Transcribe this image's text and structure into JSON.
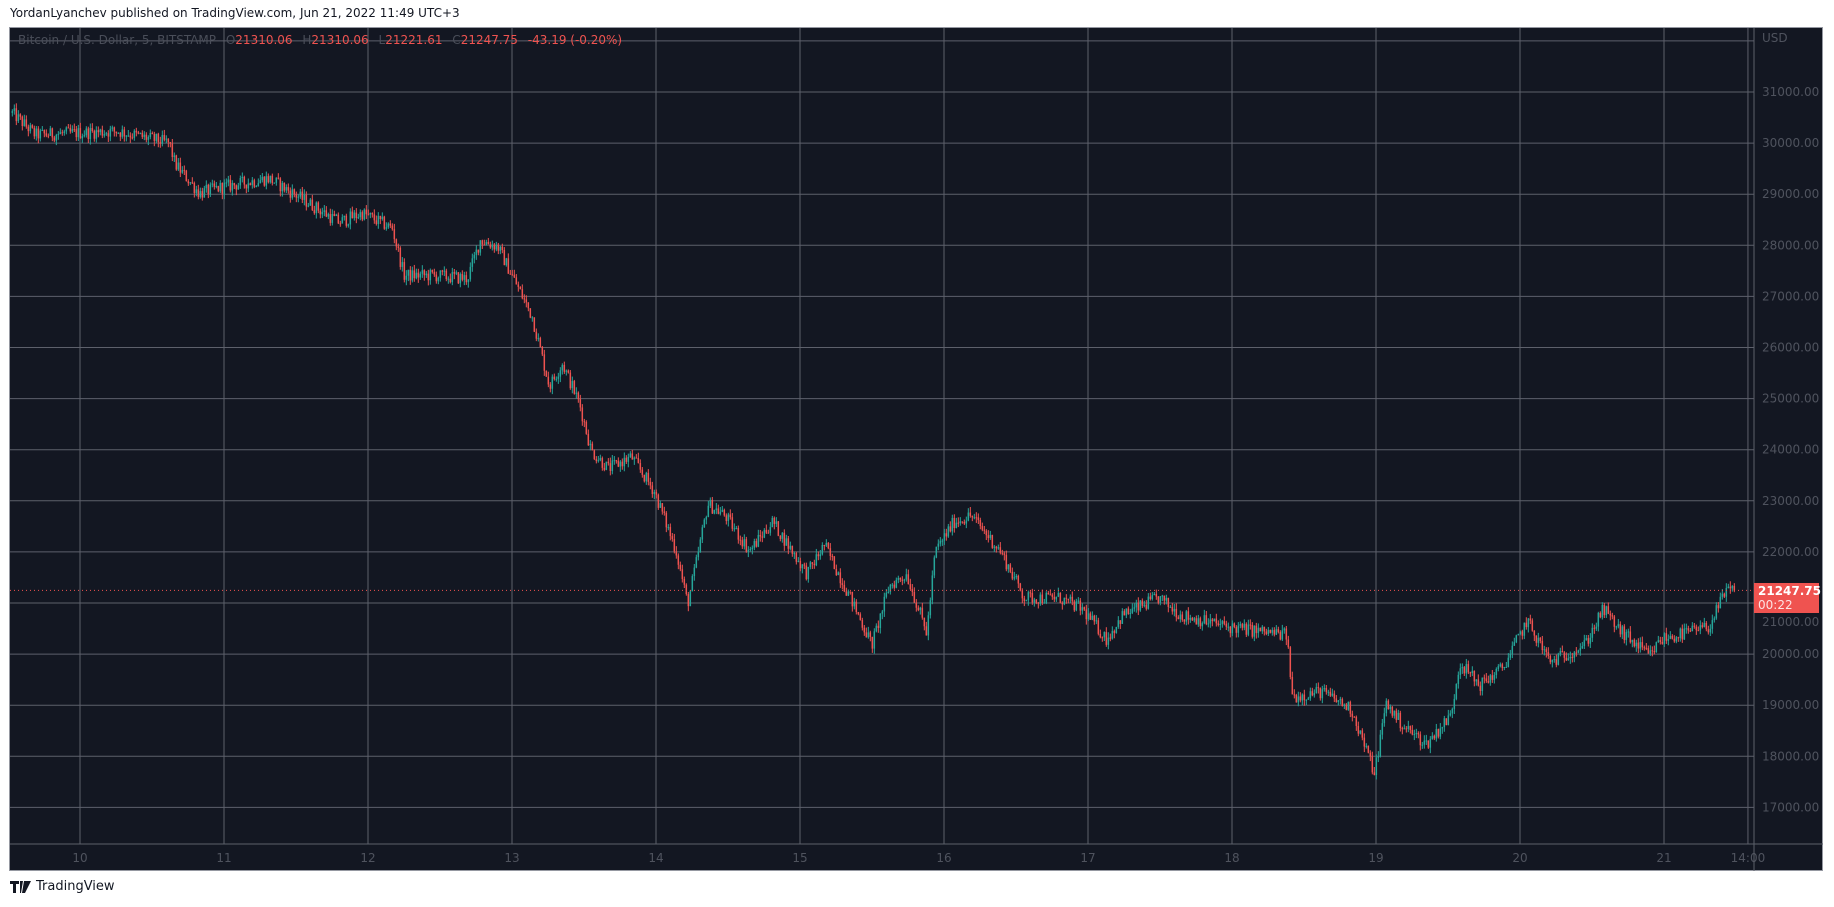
{
  "header": {
    "published": "YordanLyanchev published on TradingView.com, Jun 21, 2022 11:49 UTC+3"
  },
  "legend": {
    "symbol": "Bitcoin / U.S. Dollar, 5, BITSTAMP",
    "o_label": "O",
    "o": "21310.06",
    "h_label": "H",
    "h": "21310.06",
    "l_label": "L",
    "l": "21221.61",
    "c_label": "C",
    "c": "21247.75",
    "change": "-43.19 (-0.20%)"
  },
  "current_price": {
    "value": "21247.75",
    "countdown": "00:22"
  },
  "footer": {
    "brand": "TradingView"
  },
  "colors": {
    "background": "#131722",
    "up": "#26a69a",
    "down": "#ef5350",
    "grid": "#5d606b"
  },
  "chart_data": {
    "type": "candlestick",
    "currency_label": "USD",
    "interval": "5",
    "ylim": [
      16300,
      32300
    ],
    "y_ticks": [
      31000,
      30000,
      29000,
      28000,
      27000,
      26000,
      25000,
      24000,
      23000,
      22000,
      21000,
      20000,
      19000,
      18000,
      17000
    ],
    "y_tick_labels": [
      "31000.00",
      "30000.00",
      "29000.00",
      "28000.00",
      "27000.00",
      "26000.00",
      "25000.00",
      "24000.00",
      "23000.00",
      "22000.00",
      "21000.00",
      "20000.00",
      "19000.00",
      "18000.00",
      "17000.00"
    ],
    "x_ticks": [
      10,
      11,
      12,
      13,
      14,
      15,
      16,
      17,
      18,
      19,
      20,
      21,
      21.583
    ],
    "x_tick_labels": [
      "10",
      "11",
      "12",
      "13",
      "14",
      "15",
      "16",
      "17",
      "18",
      "19",
      "20",
      "21",
      "14:00"
    ],
    "grid": true,
    "price_path": [
      [
        9.53,
        30590
      ],
      [
        9.69,
        30160
      ],
      [
        10.26,
        30235
      ],
      [
        10.62,
        30000
      ],
      [
        10.66,
        29590
      ],
      [
        10.83,
        29020
      ],
      [
        10.99,
        29140
      ],
      [
        11.31,
        29310
      ],
      [
        11.48,
        29020
      ],
      [
        11.8,
        28450
      ],
      [
        11.96,
        28630
      ],
      [
        12.17,
        28330
      ],
      [
        12.25,
        27410
      ],
      [
        12.45,
        27410
      ],
      [
        12.69,
        27350
      ],
      [
        12.78,
        28100
      ],
      [
        12.9,
        27980
      ],
      [
        13.02,
        27300
      ],
      [
        13.14,
        26610
      ],
      [
        13.26,
        25240
      ],
      [
        13.35,
        25690
      ],
      [
        13.47,
        24890
      ],
      [
        13.55,
        23980
      ],
      [
        13.67,
        23630
      ],
      [
        13.83,
        23860
      ],
      [
        13.99,
        23180
      ],
      [
        14.14,
        22020
      ],
      [
        14.22,
        20980
      ],
      [
        14.28,
        21790
      ],
      [
        14.36,
        22940
      ],
      [
        14.48,
        22710
      ],
      [
        14.65,
        22020
      ],
      [
        14.81,
        22590
      ],
      [
        15.05,
        21570
      ],
      [
        15.17,
        22140
      ],
      [
        15.33,
        21220
      ],
      [
        15.5,
        20180
      ],
      [
        15.62,
        21330
      ],
      [
        15.74,
        21570
      ],
      [
        15.88,
        20410
      ],
      [
        15.94,
        22020
      ],
      [
        16.07,
        22590
      ],
      [
        16.19,
        22710
      ],
      [
        16.39,
        22020
      ],
      [
        16.56,
        21100
      ],
      [
        16.8,
        21100
      ],
      [
        16.96,
        20880
      ],
      [
        17.13,
        20290
      ],
      [
        17.24,
        20760
      ],
      [
        17.49,
        21100
      ],
      [
        17.65,
        20760
      ],
      [
        17.98,
        20530
      ],
      [
        18.38,
        20370
      ],
      [
        18.42,
        19160
      ],
      [
        18.62,
        19270
      ],
      [
        18.83,
        18920
      ],
      [
        18.99,
        17670
      ],
      [
        19.07,
        19040
      ],
      [
        19.19,
        18590
      ],
      [
        19.35,
        18240
      ],
      [
        19.52,
        18800
      ],
      [
        19.58,
        19840
      ],
      [
        19.72,
        19390
      ],
      [
        19.88,
        19730
      ],
      [
        20.05,
        20650
      ],
      [
        20.21,
        19840
      ],
      [
        20.45,
        20180
      ],
      [
        20.58,
        20880
      ],
      [
        20.69,
        20470
      ],
      [
        20.9,
        19960
      ],
      [
        20.98,
        20290
      ],
      [
        21.15,
        20410
      ],
      [
        21.31,
        20530
      ],
      [
        21.43,
        21220
      ],
      [
        21.49,
        21248
      ]
    ],
    "last_close": 21247.75
  }
}
